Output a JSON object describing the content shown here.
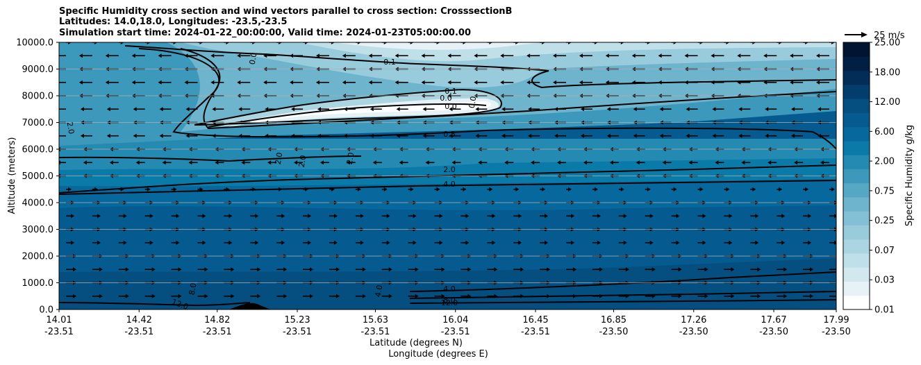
{
  "chart_data": {
    "type": "contourf",
    "title_lines": [
      "Specific Humidity cross section and wind vectors parallel to cross section: CrosssectionB",
      "Latitudes: 14.0,18.0, Longitudes: -23.5,-23.5",
      "Simulation start time: 2024-01-22_00:00:00, Valid time: 2024-01-23T05:00:00.00"
    ],
    "ylabel": "Altitude (meters)",
    "xlabel_lat": "Latitude (degrees N)",
    "xlabel_lon": "Longitude (degrees E)",
    "ylim": [
      0,
      10000
    ],
    "yticks": [
      "0.0",
      "1000.0",
      "2000.0",
      "3000.0",
      "4000.0",
      "5000.0",
      "6000.0",
      "7000.0",
      "8000.0",
      "9000.0",
      "10000.0"
    ],
    "xticks_lat": [
      "14.01",
      "14.42",
      "14.82",
      "15.23",
      "15.63",
      "16.04",
      "16.45",
      "16.85",
      "17.26",
      "17.67",
      "17.99"
    ],
    "xticks_lon": [
      "-23.51",
      "-23.51",
      "-23.51",
      "-23.51",
      "-23.51",
      "-23.51",
      "-23.51",
      "-23.50",
      "-23.50",
      "-23.50",
      "-23.50"
    ],
    "grid": "horizontal",
    "colorbar": {
      "label": "Specific Humidity g/kg",
      "ticks": [
        "0.01",
        "0.03",
        "0.07",
        "0.25",
        "0.75",
        "2.00",
        "6.00",
        "12.00",
        "18.00",
        "25.00"
      ],
      "colors": [
        "#ffffff",
        "#e6f2f5",
        "#d2e8ef",
        "#bfdfe9",
        "#acd5e2",
        "#98cbdc",
        "#84c0d5",
        "#6eb4cd",
        "#56a7c4",
        "#3d99bb",
        "#248ab1",
        "#0a7ba8",
        "#06689d",
        "#055b8f",
        "#044e80",
        "#033d6c",
        "#022d57",
        "#011f43",
        "#011431"
      ]
    },
    "quiver_key": "25 m/s",
    "contour_labels": [
      "0.1",
      "0.0",
      "0.1",
      "0.0",
      "0.0",
      "0.0",
      "0.5",
      "2.0",
      "2.0",
      "2.0",
      "2.0",
      "2.0",
      "4.0",
      "8.0",
      "12.0",
      "4.0",
      "4.0",
      "8.0",
      "12.0"
    ],
    "wind_direction_by_level": [
      {
        "altitude_min": 0,
        "altitude_max": 5000,
        "direction": "east"
      },
      {
        "altitude_min": 5000,
        "altitude_max": 10000,
        "direction": "west"
      }
    ]
  }
}
